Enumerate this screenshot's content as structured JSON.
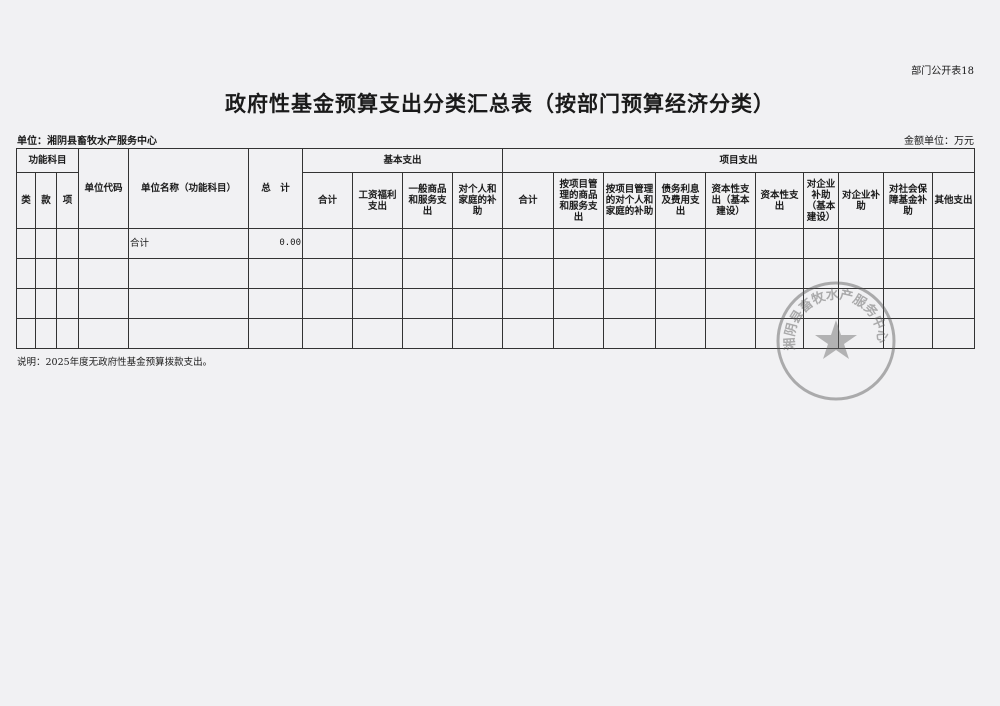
{
  "doc": {
    "tag": "部门公开表18",
    "title": "政府性基金预算支出分类汇总表（按部门预算经济分类）",
    "unit": "单位：湘阴县畜牧水产服务中心",
    "money_unit": "金额单位：万元",
    "note": "说明：2025年度无政府性基金预算拨款支出。"
  },
  "table": {
    "group_function": "功能科目",
    "col_lei": "类",
    "col_kuan": "款",
    "col_xiang": "项",
    "col_code": "单位代码",
    "col_name": "单位名称（功能科目）",
    "col_total": "总　计",
    "group_basic": "基本支出",
    "group_project": "项目支出",
    "basic_cols": [
      "合计",
      "工资福利支出",
      "一般商品和服务支出",
      "对个人和家庭的补助"
    ],
    "project_cols": [
      "合计",
      "按项目管理的商品和服务支出",
      "按项目管理的对个人和家庭的补助",
      "债务利息及费用支出",
      "资本性支出（基本建设）",
      "资本性支出",
      "对企业补助（基本建设）",
      "对企业补助",
      "对社会保障基金补助",
      "其他支出"
    ],
    "rows": [
      {
        "name": "合计",
        "total": "0.00"
      }
    ]
  },
  "stamp": {
    "text": "湘阴县畜牧水产服务中心"
  }
}
